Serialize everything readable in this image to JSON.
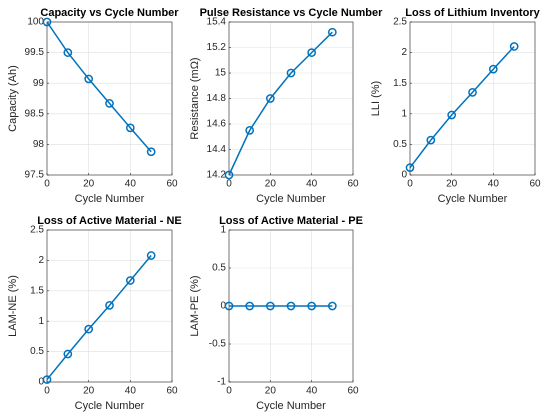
{
  "chart_data": [
    {
      "type": "line",
      "title": "Capacity vs Cycle Number",
      "xlabel": "Cycle Number",
      "ylabel": "Capacity (Ah)",
      "x": [
        0,
        10,
        20,
        30,
        40,
        50
      ],
      "values": [
        100,
        99.5,
        99.07,
        98.67,
        98.27,
        97.88
      ],
      "color": "#0072bd",
      "xlim": [
        0,
        60
      ],
      "xticks": [
        0,
        20,
        40,
        60
      ],
      "ylim": [
        97.5,
        100
      ],
      "yticks": [
        97.5,
        98,
        98.5,
        99,
        99.5,
        100
      ],
      "grid": true
    },
    {
      "type": "line",
      "title": "Pulse Resistance vs Cycle Number",
      "xlabel": "Cycle Number",
      "ylabel": "Resistance (mΩ)",
      "x": [
        0,
        10,
        20,
        30,
        40,
        50
      ],
      "values": [
        14.2,
        14.55,
        14.8,
        15.0,
        15.16,
        15.32
      ],
      "color": "#0072bd",
      "xlim": [
        0,
        60
      ],
      "xticks": [
        0,
        20,
        40,
        60
      ],
      "ylim": [
        14.2,
        15.4
      ],
      "yticks": [
        14.2,
        14.4,
        14.6,
        14.8,
        15,
        15.2,
        15.4
      ],
      "grid": true
    },
    {
      "type": "line",
      "title": "Loss of Lithium Inventory",
      "xlabel": "Cycle Number",
      "ylabel": "LLI (%)",
      "x": [
        0,
        10,
        20,
        30,
        40,
        50
      ],
      "values": [
        0.12,
        0.57,
        0.98,
        1.35,
        1.73,
        2.1
      ],
      "color": "#0072bd",
      "xlim": [
        0,
        60
      ],
      "xticks": [
        0,
        20,
        40,
        60
      ],
      "ylim": [
        0,
        2.5
      ],
      "yticks": [
        0,
        0.5,
        1,
        1.5,
        2,
        2.5
      ],
      "grid": true
    },
    {
      "type": "line",
      "title": "Loss of Active Material - NE",
      "xlabel": "Cycle Number",
      "ylabel": "LAM-NE (%)",
      "x": [
        0,
        10,
        20,
        30,
        40,
        50
      ],
      "values": [
        0.04,
        0.46,
        0.87,
        1.26,
        1.67,
        2.08
      ],
      "color": "#0072bd",
      "xlim": [
        0,
        60
      ],
      "xticks": [
        0,
        20,
        40,
        60
      ],
      "ylim": [
        0,
        2.5
      ],
      "yticks": [
        0,
        0.5,
        1,
        1.5,
        2,
        2.5
      ],
      "grid": true
    },
    {
      "type": "line",
      "title": "Loss of Active Material - PE",
      "xlabel": "Cycle Number",
      "ylabel": "LAM-PE (%)",
      "x": [
        0,
        10,
        20,
        30,
        40,
        50
      ],
      "values": [
        0,
        0,
        0,
        0,
        0,
        0
      ],
      "color": "#0072bd",
      "xlim": [
        0,
        60
      ],
      "xticks": [
        0,
        20,
        40,
        60
      ],
      "ylim": [
        -1,
        1
      ],
      "yticks": [
        -1,
        -0.5,
        0,
        0.5,
        1
      ],
      "grid": true
    }
  ]
}
